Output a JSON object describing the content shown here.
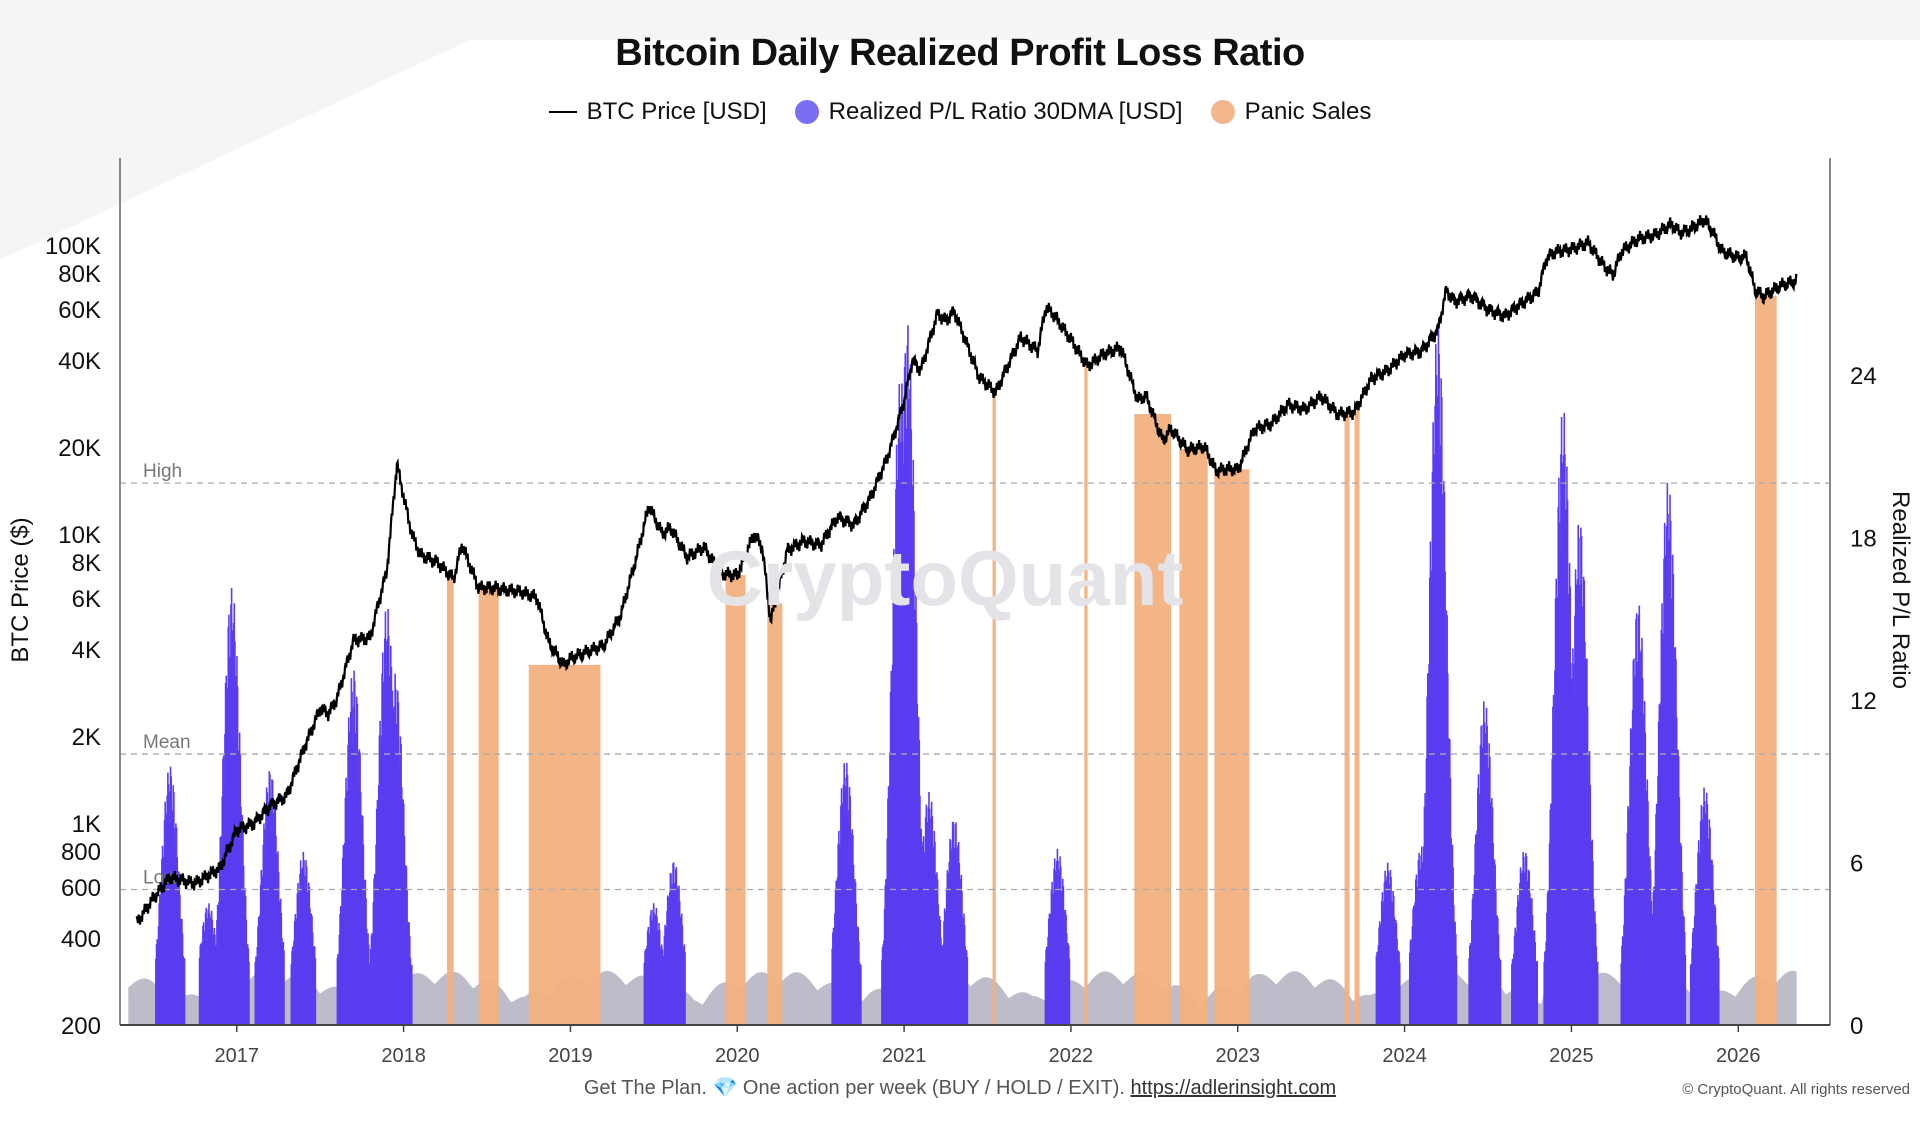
{
  "chart_data": {
    "type": "bar",
    "title": "Bitcoin Daily Realized Profit Loss Ratio",
    "legend": [
      {
        "label": "BTC Price [USD]",
        "marker": "line",
        "color": "#000000"
      },
      {
        "label": "Realized P/L Ratio 30DMA [USD]",
        "marker": "dot",
        "color": "#7B6EF6"
      },
      {
        "label": "Panic Sales",
        "marker": "dot",
        "color": "#F2B68A"
      }
    ],
    "legend_placement": "top-center",
    "left_axis": {
      "label": "BTC Price ($)",
      "scale": "log",
      "range": [
        200,
        200000
      ],
      "ticks": [
        200,
        400,
        600,
        800,
        1000,
        2000,
        4000,
        6000,
        8000,
        10000,
        20000,
        40000,
        60000,
        80000,
        100000
      ],
      "tick_labels": [
        "200",
        "400",
        "600",
        "800",
        "1K",
        "2K",
        "4K",
        "6K",
        "8K",
        "10K",
        "20K",
        "40K",
        "60K",
        "80K",
        "100K"
      ]
    },
    "right_axis": {
      "label": "Realized P/L Ratio",
      "scale": "linear",
      "range": [
        0,
        32
      ],
      "ticks": [
        0,
        6,
        12,
        18,
        24
      ],
      "tick_labels": [
        "0",
        "6",
        "12",
        "18",
        "24"
      ]
    },
    "x_axis": {
      "range": [
        "2016-05-01",
        "2026-05-01"
      ],
      "tick_labels": [
        "2017",
        "2018",
        "2019",
        "2020",
        "2021",
        "2022",
        "2023",
        "2024",
        "2025",
        "2026"
      ]
    },
    "reference_lines": [
      {
        "label": "High",
        "value": 20
      },
      {
        "label": "Mean",
        "value": 10
      },
      {
        "label": "Low",
        "value": 5
      }
    ],
    "watermark": "CryptoQuant",
    "btc_price": {
      "x": [
        2016.4,
        2016.5,
        2016.6,
        2016.75,
        2016.9,
        2017.0,
        2017.1,
        2017.2,
        2017.3,
        2017.4,
        2017.5,
        2017.55,
        2017.6,
        2017.7,
        2017.8,
        2017.85,
        2017.9,
        2017.96,
        2018.0,
        2018.05,
        2018.1,
        2018.2,
        2018.3,
        2018.35,
        2018.45,
        2018.55,
        2018.6,
        2018.7,
        2018.8,
        2018.87,
        2018.92,
        2018.96,
        2019.0,
        2019.1,
        2019.2,
        2019.3,
        2019.4,
        2019.47,
        2019.55,
        2019.6,
        2019.7,
        2019.8,
        2019.9,
        2020.0,
        2020.1,
        2020.15,
        2020.2,
        2020.3,
        2020.4,
        2020.5,
        2020.6,
        2020.7,
        2020.8,
        2020.9,
        2020.95,
        2021.0,
        2021.05,
        2021.1,
        2021.2,
        2021.25,
        2021.3,
        2021.35,
        2021.45,
        2021.55,
        2021.6,
        2021.7,
        2021.8,
        2021.85,
        2021.9,
        2022.0,
        2022.1,
        2022.2,
        2022.3,
        2022.4,
        2022.45,
        2022.55,
        2022.6,
        2022.7,
        2022.8,
        2022.87,
        2022.95,
        2023.0,
        2023.1,
        2023.2,
        2023.3,
        2023.4,
        2023.5,
        2023.6,
        2023.7,
        2023.8,
        2023.9,
        2024.0,
        2024.1,
        2024.2,
        2024.25,
        2024.3,
        2024.4,
        2024.5,
        2024.6,
        2024.7,
        2024.8,
        2024.85,
        2024.9,
        2025.0,
        2025.1,
        2025.2,
        2025.25,
        2025.3,
        2025.4,
        2025.5,
        2025.6,
        2025.65,
        2025.7,
        2025.8,
        2025.85,
        2025.9,
        2026.0,
        2026.05,
        2026.1,
        2026.15,
        2026.25,
        2026.35
      ],
      "y": [
        450,
        550,
        650,
        620,
        700,
        950,
        1000,
        1150,
        1250,
        1800,
        2500,
        2400,
        2700,
        4300,
        4400,
        5800,
        7500,
        17500,
        13500,
        10000,
        8500,
        8000,
        7000,
        9200,
        6500,
        6500,
        6400,
        6300,
        6000,
        4200,
        3800,
        3500,
        3700,
        3900,
        4100,
        5200,
        8500,
        12500,
        10000,
        10500,
        8300,
        9000,
        7300,
        7200,
        10000,
        9000,
        5000,
        8800,
        9500,
        9200,
        11500,
        10800,
        13500,
        18500,
        23000,
        29000,
        40000,
        37000,
        58000,
        55000,
        59000,
        50000,
        35000,
        31000,
        36000,
        48000,
        43000,
        61000,
        57000,
        47000,
        38000,
        42000,
        44000,
        29000,
        30000,
        21000,
        23000,
        19500,
        20000,
        16500,
        16800,
        16600,
        23000,
        24000,
        28000,
        27000,
        30000,
        26000,
        26500,
        34500,
        37000,
        42000,
        43000,
        51000,
        70000,
        64000,
        67000,
        60000,
        57000,
        63000,
        69000,
        90000,
        95000,
        97000,
        102000,
        84000,
        79000,
        95000,
        105000,
        108000,
        118000,
        110000,
        112000,
        122000,
        110000,
        95000,
        90000,
        91000,
        70000,
        66000,
        72000,
        75000
      ]
    },
    "panic_sales_periods": [
      [
        "2018.26",
        "2018.30"
      ],
      [
        "2018.45",
        "2018.57"
      ],
      [
        "2018.75",
        "2019.18"
      ],
      [
        "2019.93",
        "2020.05"
      ],
      [
        "2020.18",
        "2020.27"
      ],
      [
        "2021.53",
        "2021.55"
      ],
      [
        "2022.08",
        "2022.10"
      ],
      [
        "2022.38",
        "2022.60"
      ],
      [
        "2022.65",
        "2022.82"
      ],
      [
        "2022.86",
        "2023.07"
      ],
      [
        "2023.64",
        "2023.67"
      ],
      [
        "2023.70",
        "2023.73"
      ],
      [
        "2026.10",
        "2026.23"
      ]
    ],
    "pl_ratio_peaks": [
      {
        "x": 2016.6,
        "y": 9.6
      },
      {
        "x": 2016.83,
        "y": 4.5
      },
      {
        "x": 2016.97,
        "y": 16.2
      },
      {
        "x": 2017.2,
        "y": 9.5
      },
      {
        "x": 2017.4,
        "y": 6.4
      },
      {
        "x": 2017.7,
        "y": 13.2
      },
      {
        "x": 2017.9,
        "y": 15.5
      },
      {
        "x": 2017.95,
        "y": 13.0
      },
      {
        "x": 2019.5,
        "y": 4.5
      },
      {
        "x": 2019.62,
        "y": 6.1
      },
      {
        "x": 2020.65,
        "y": 9.8
      },
      {
        "x": 2020.98,
        "y": 24.0
      },
      {
        "x": 2021.02,
        "y": 26.0
      },
      {
        "x": 2021.15,
        "y": 8.6
      },
      {
        "x": 2021.3,
        "y": 7.7
      },
      {
        "x": 2021.92,
        "y": 6.5
      },
      {
        "x": 2023.9,
        "y": 6.0
      },
      {
        "x": 2024.1,
        "y": 6.6
      },
      {
        "x": 2024.2,
        "y": 25.9
      },
      {
        "x": 2024.48,
        "y": 12.0
      },
      {
        "x": 2024.72,
        "y": 6.5
      },
      {
        "x": 2024.95,
        "y": 22.8
      },
      {
        "x": 2025.05,
        "y": 18.8
      },
      {
        "x": 2025.4,
        "y": 15.7
      },
      {
        "x": 2025.58,
        "y": 20.1
      },
      {
        "x": 2025.8,
        "y": 8.8
      }
    ]
  },
  "footer": {
    "text": "Get The Plan. 💎 One action per week (BUY / HOLD / EXIT).",
    "link": "https://adlerinsight.com"
  },
  "copyright": "© CryptoQuant. All rights reserved"
}
